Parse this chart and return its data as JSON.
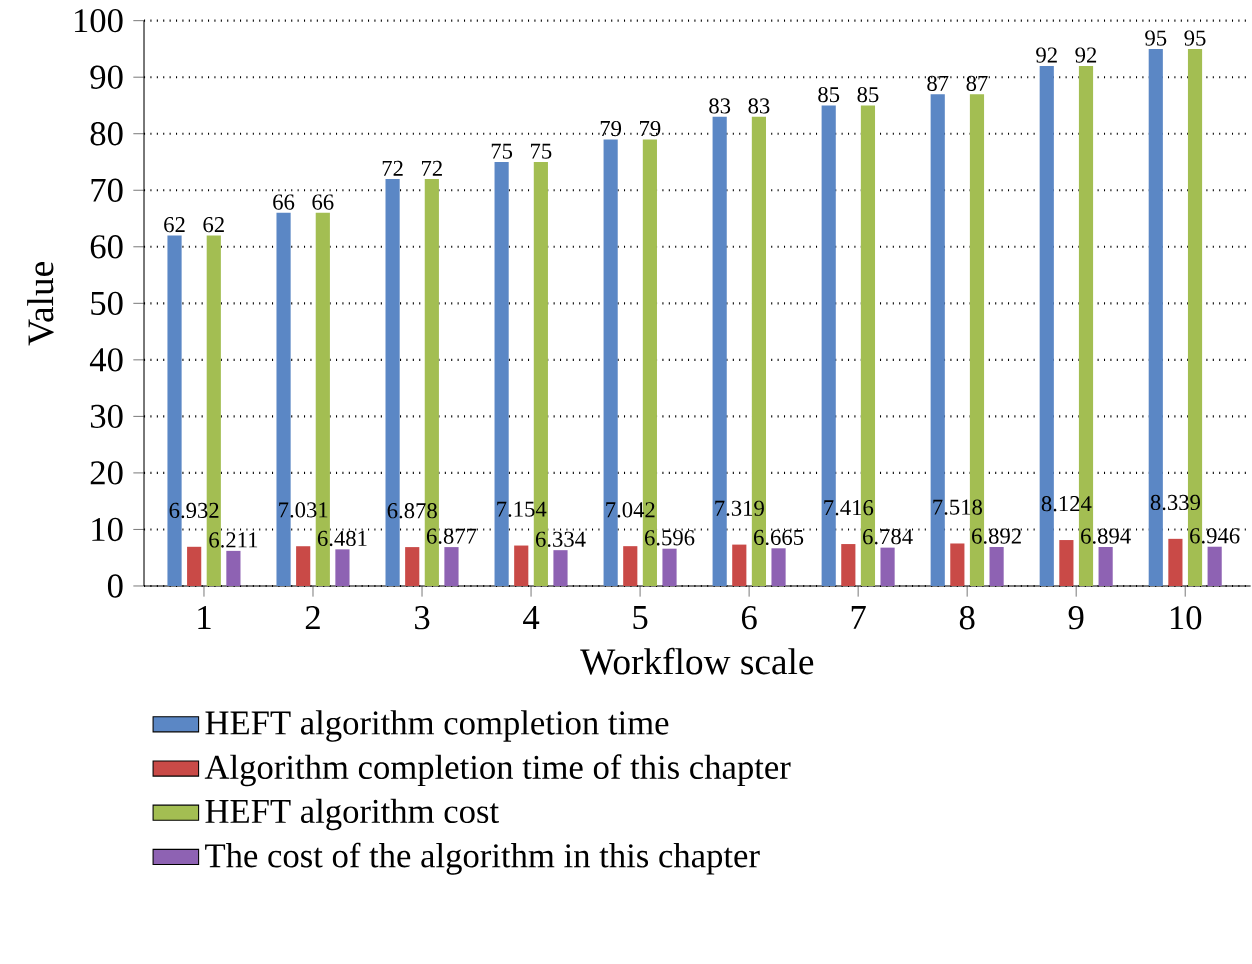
{
  "chart_data": {
    "type": "bar",
    "xlabel": "Workflow scale",
    "ylabel": "Value",
    "categories": [
      "1",
      "2",
      "3",
      "4",
      "5",
      "6",
      "7",
      "8",
      "9",
      "10"
    ],
    "series": [
      {
        "name": "HEFT algorithm completion time",
        "color": "#5b87c5",
        "values": [
          62,
          66,
          72,
          75,
          79,
          83,
          85,
          87,
          92,
          95
        ]
      },
      {
        "name": "Algorithm completion time of this chapter",
        "color": "#c94a47",
        "values": [
          6.932,
          7.031,
          6.878,
          7.154,
          7.042,
          7.319,
          7.416,
          7.518,
          8.124,
          8.339
        ]
      },
      {
        "name": "HEFT algorithm cost",
        "color": "#a3be52",
        "values": [
          62,
          66,
          72,
          75,
          79,
          83,
          85,
          87,
          92,
          95
        ]
      },
      {
        "name": "The cost of the algorithm in this chapter",
        "color": "#8e62b3",
        "values": [
          6.211,
          6.481,
          6.877,
          6.334,
          6.596,
          6.665,
          6.784,
          6.892,
          6.894,
          6.946
        ]
      }
    ],
    "ylim": [
      0,
      100
    ],
    "yticks": [
      0,
      10,
      20,
      30,
      40,
      50,
      60,
      70,
      80,
      90,
      100
    ],
    "grid": "y",
    "legend": "bottom",
    "data_labels": true
  }
}
